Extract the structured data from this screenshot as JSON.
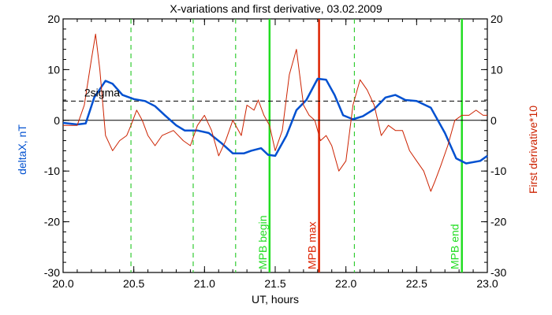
{
  "chart_data": {
    "type": "line",
    "title": "X-variations and first derivative, 03.02.2009",
    "xlabel": "UT, hours",
    "ylabel_left": "deltaX, nT",
    "ylabel_right": "First derivative*10",
    "xlim": [
      20.0,
      23.0
    ],
    "ylim_left": [
      -30,
      20
    ],
    "ylim_right": [
      -30,
      20
    ],
    "x_ticks": [
      "20.0",
      "20.5",
      "21.0",
      "21.5",
      "22.0",
      "22.5",
      "23.0"
    ],
    "x_tick_values": [
      20.0,
      20.5,
      21.0,
      21.5,
      22.0,
      22.5,
      23.0
    ],
    "y_ticks": [
      "20",
      "10",
      "0",
      "-10",
      "-20",
      "-30"
    ],
    "y_tick_values": [
      20,
      10,
      0,
      -10,
      -20,
      -30
    ],
    "threshold": {
      "label": "2sigma",
      "value": 3.8,
      "zero_line": 0
    },
    "series": [
      {
        "color": "#0050d0",
        "axis": "left",
        "x": [
          20.0,
          20.1,
          20.16,
          20.22,
          20.3,
          20.35,
          20.42,
          20.5,
          20.58,
          20.65,
          20.72,
          20.8,
          20.86,
          20.95,
          21.03,
          21.12,
          21.2,
          21.28,
          21.33,
          21.4,
          21.45,
          21.5,
          21.58,
          21.65,
          21.72,
          21.8,
          21.86,
          21.92,
          21.98,
          22.05,
          22.12,
          22.2,
          22.28,
          22.35,
          22.42,
          22.5,
          22.6,
          22.7,
          22.78,
          22.85,
          22.95,
          23.0
        ],
        "y": [
          -0.5,
          -0.8,
          -0.6,
          4.5,
          7.8,
          7.2,
          5.0,
          4.2,
          3.8,
          2.8,
          1.0,
          -1.0,
          -2.0,
          -2.0,
          -2.5,
          -4.5,
          -6.5,
          -6.5,
          -6.0,
          -5.5,
          -6.8,
          -7.0,
          -3.0,
          2.0,
          4.0,
          8.2,
          8.0,
          5.0,
          1.0,
          0.2,
          0.8,
          2.2,
          4.5,
          5.0,
          4.0,
          3.8,
          2.5,
          -2.5,
          -7.5,
          -8.5,
          -8.0,
          -7.0
        ]
      },
      {
        "color": "#cc2200",
        "axis": "right",
        "x": [
          20.0,
          20.1,
          20.15,
          20.2,
          20.23,
          20.26,
          20.3,
          20.35,
          20.4,
          20.45,
          20.48,
          20.52,
          20.56,
          20.6,
          20.65,
          20.7,
          20.78,
          20.85,
          20.9,
          20.95,
          21.0,
          21.05,
          21.1,
          21.15,
          21.2,
          21.26,
          21.3,
          21.35,
          21.38,
          21.42,
          21.46,
          21.5,
          21.55,
          21.6,
          21.65,
          21.7,
          21.74,
          21.78,
          21.82,
          21.86,
          21.9,
          21.95,
          22.0,
          22.05,
          22.1,
          22.15,
          22.2,
          22.25,
          22.3,
          22.35,
          22.4,
          22.45,
          22.5,
          22.55,
          22.6,
          22.63,
          22.67,
          22.72,
          22.77,
          22.82,
          22.87,
          22.92,
          22.97,
          23.0
        ],
        "y": [
          -1,
          -1,
          3,
          12,
          17,
          10,
          -3,
          -6,
          -4,
          -3,
          -1,
          2,
          0,
          -3,
          -5,
          -3,
          -2,
          -4,
          -5,
          -1,
          1,
          -2,
          -7,
          -4,
          0,
          -3,
          3,
          2,
          4,
          1,
          -1,
          -6,
          -2,
          9,
          14,
          3,
          1,
          0,
          -4,
          -3,
          -5,
          -10,
          -8,
          3,
          8,
          6,
          3,
          -3,
          -1,
          -2,
          -2,
          -6,
          -8,
          -10,
          -14,
          -12,
          -9,
          -5,
          0,
          1,
          1,
          2,
          1,
          1
        ]
      }
    ],
    "markers": [
      {
        "x": 20.48,
        "label": "",
        "color": "#33cc33",
        "style": "dashed"
      },
      {
        "x": 20.92,
        "label": "",
        "color": "#33cc33",
        "style": "dashed"
      },
      {
        "x": 21.22,
        "label": "",
        "color": "#33cc33",
        "style": "dashed"
      },
      {
        "x": 22.06,
        "label": "",
        "color": "#33cc33",
        "style": "dashed"
      },
      {
        "x": 21.46,
        "label": "MPB begin",
        "color": "#22dd22",
        "style": "solid"
      },
      {
        "x": 21.81,
        "label": "MPB max",
        "color": "#dd2200",
        "style": "solid"
      },
      {
        "x": 22.82,
        "label": "MPB end",
        "color": "#22dd22",
        "style": "solid"
      }
    ]
  }
}
